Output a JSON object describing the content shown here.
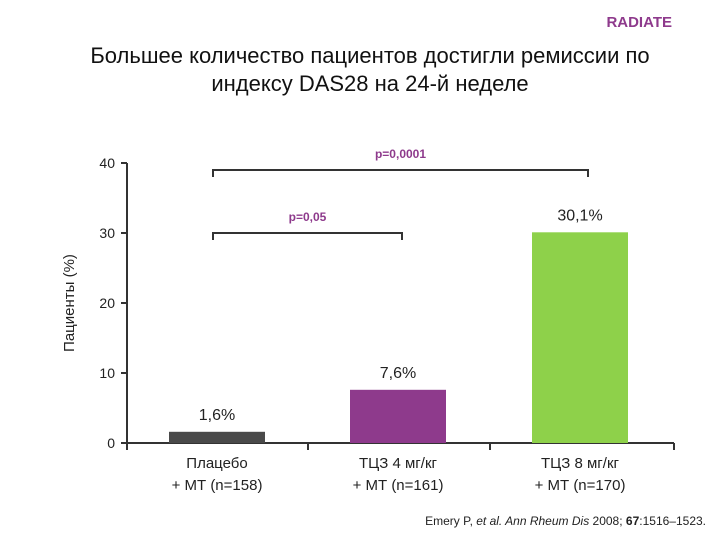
{
  "badge": "RADIATE",
  "title_line1": "Большее количество пациентов достигли ремиссии по",
  "title_line2": "индексу DAS28 на 24-й неделе",
  "reference": {
    "authors": "Emery P, ",
    "etal": "et al.",
    "journal": " Ann Rheum Dis",
    "year": " 2008; ",
    "volume": "67",
    "pages": ":1516–1523."
  },
  "chart_data": {
    "type": "bar",
    "title": "",
    "xlabel": "",
    "ylabel": "Пациенты (%)",
    "ylim": [
      0,
      40
    ],
    "yticks": [
      0,
      10,
      20,
      30,
      40
    ],
    "categories": [
      [
        "Плацебо",
        "+ МТ (n=158)"
      ],
      [
        "ТЦЗ 4 мг/кг",
        "+ МТ (n=161)"
      ],
      [
        "ТЦЗ 8 мг/кг",
        "+ МТ (n=170)"
      ]
    ],
    "values": [
      1.6,
      7.6,
      30.1
    ],
    "value_labels": [
      "1,6%",
      "7,6%",
      "30,1%"
    ],
    "colors": [
      "#4a4a4a",
      "#8e3a8c",
      "#8ed14a"
    ],
    "annotations": [
      {
        "text": "p=0,0001",
        "from": 0,
        "to": 2,
        "level": 39
      },
      {
        "text": "p=0,05",
        "from": 0,
        "to": 1,
        "level": 30
      }
    ],
    "annotation_color": "#8e3a8c",
    "grid": false,
    "legend": "none"
  }
}
